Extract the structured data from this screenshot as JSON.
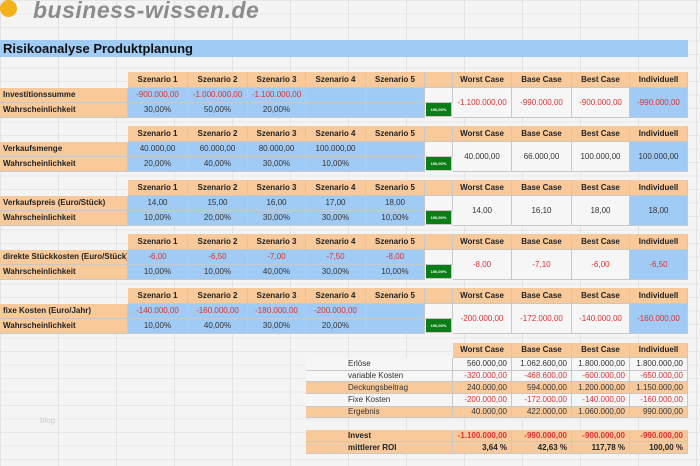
{
  "logo_text": "business-wissen.de",
  "title": "Risikoanalyse Produktplanung",
  "watermark": "blog",
  "colors": {
    "header": "#f8c99a",
    "input": "#9fcbf5",
    "check": "#0b7d18",
    "negative": "#e03030"
  },
  "scenario_headers": [
    "Szenario 1",
    "Szenario 2",
    "Szenario 3",
    "Szenario 4",
    "Szenario 5"
  ],
  "case_headers": [
    "Worst Case",
    "Base Case",
    "Best Case",
    "Individuell"
  ],
  "prob_label": "Wahrscheinlichkeit",
  "blocks": [
    {
      "label": "Investitionssumme",
      "values": [
        "-900.000,00",
        "-1.000.000,00",
        "-1.100.000,00",
        "",
        ""
      ],
      "probs": [
        "30,00%",
        "50,00%",
        "20,00%",
        "",
        ""
      ],
      "check": "100,00%",
      "cases": [
        "-1.100.000,00",
        "-990.000,00",
        "-900.000,00",
        "-990.000,00"
      ],
      "negative": true
    },
    {
      "label": "Verkaufsmenge",
      "values": [
        "40.000,00",
        "60.000,00",
        "80.000,00",
        "100.000,00",
        ""
      ],
      "probs": [
        "20,00%",
        "40,00%",
        "30,00%",
        "10,00%",
        ""
      ],
      "check": "100,00%",
      "cases": [
        "40.000,00",
        "66.000,00",
        "100.000,00",
        "100.000,00"
      ],
      "negative": false
    },
    {
      "label": "Verkaufspreis (Euro/Stück)",
      "values": [
        "14,00",
        "15,00",
        "16,00",
        "17,00",
        "18,00"
      ],
      "probs": [
        "10,00%",
        "20,00%",
        "30,00%",
        "30,00%",
        "10,00%"
      ],
      "check": "100,00%",
      "cases": [
        "14,00",
        "16,10",
        "18,00",
        "18,00"
      ],
      "negative": false
    },
    {
      "label": "direkte Stückkosten (Euro/Stück)",
      "values": [
        "-6,00",
        "-6,50",
        "-7,00",
        "-7,50",
        "-8,00"
      ],
      "probs": [
        "10,00%",
        "10,00%",
        "40,00%",
        "30,00%",
        "10,00%"
      ],
      "check": "100,00%",
      "cases": [
        "-8,00",
        "-7,10",
        "-6,00",
        "-6,50"
      ],
      "negative": true
    },
    {
      "label": "fixe Kosten (Euro/Jahr)",
      "values": [
        "-140.000,00",
        "-160.000,00",
        "-180.000,00",
        "-200.000,00",
        ""
      ],
      "probs": [
        "10,00%",
        "40,00%",
        "30,00%",
        "20,00%",
        ""
      ],
      "check": "100,00%",
      "cases": [
        "-200.000,00",
        "-172.000,00",
        "-140.000,00",
        "-160.000,00"
      ],
      "negative": true
    }
  ],
  "summary": [
    {
      "label": "Erlöse",
      "values": [
        "560.000,00",
        "1.062.600,00",
        "1.800.000,00",
        "1.800.000,00"
      ],
      "negative": false,
      "band": false
    },
    {
      "label": "variable Kosten",
      "values": [
        "-320.000,00",
        "-468.600,00",
        "-600.000,00",
        "-650.000,00"
      ],
      "negative": true,
      "band": false
    },
    {
      "label": "Deckungsbeitrag",
      "values": [
        "240.000,00",
        "594.000,00",
        "1.200.000,00",
        "1.150.000,00"
      ],
      "negative": false,
      "band": true
    },
    {
      "label": "Fixe Kosten",
      "values": [
        "-200.000,00",
        "-172.000,00",
        "-140.000,00",
        "-160.000,00"
      ],
      "negative": true,
      "band": false
    },
    {
      "label": "Ergebnis",
      "values": [
        "40.000,00",
        "422.000,00",
        "1.060.000,00",
        "990.000,00"
      ],
      "negative": false,
      "band": true
    }
  ],
  "invest": {
    "label": "Invest",
    "values": [
      "-1.100.000,00",
      "-990.000,00",
      "-900.000,00",
      "-990.000,00"
    ]
  },
  "roi": {
    "label": "mittlerer ROI",
    "values": [
      "3,64 %",
      "42,63 %",
      "117,78 %",
      "100,00 %"
    ]
  }
}
